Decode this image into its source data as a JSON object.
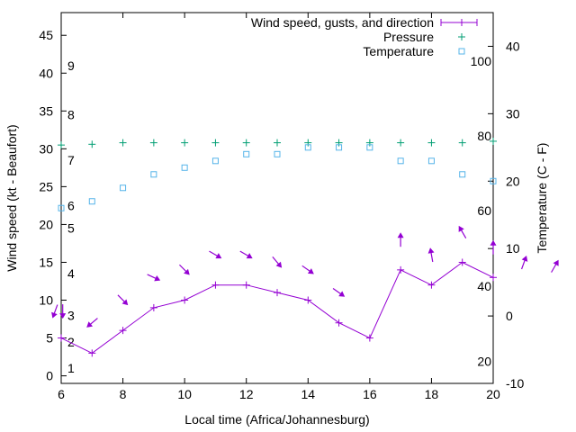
{
  "chart_data": {
    "type": "line",
    "xlabel": "Local time (Africa/Johannesburg)",
    "ylabel_left": "Wind speed (kt - Beaufort)",
    "ylabel_right": "Temperature (C - F)",
    "xlim": [
      6,
      20
    ],
    "ylim_left": [
      -1,
      48
    ],
    "ylim_right": [
      -10,
      45
    ],
    "x_ticks": [
      "6",
      "8",
      "10",
      "12",
      "14",
      "16",
      "18",
      "20"
    ],
    "y_left_ticks": [
      "0",
      "5",
      "10",
      "15",
      "20",
      "25",
      "30",
      "35",
      "40",
      "45"
    ],
    "y_right_ticks": [
      "-10",
      "0",
      "10",
      "20",
      "30",
      "40"
    ],
    "beaufort_labels": [
      {
        "text": "1",
        "wind_kt": 1
      },
      {
        "text": "2",
        "wind_kt": 4.5
      },
      {
        "text": "3",
        "wind_kt": 8
      },
      {
        "text": "4",
        "wind_kt": 13.5
      },
      {
        "text": "5",
        "wind_kt": 19.5
      },
      {
        "text": "6",
        "wind_kt": 22.5
      },
      {
        "text": "7",
        "wind_kt": 28.5
      },
      {
        "text": "8",
        "wind_kt": 34.5
      },
      {
        "text": "9",
        "wind_kt": 41
      }
    ],
    "fahrenheit_labels": [
      {
        "text": "20",
        "temp_c": -6.7
      },
      {
        "text": "40",
        "temp_c": 4.4
      },
      {
        "text": "60",
        "temp_c": 15.6
      },
      {
        "text": "80",
        "temp_c": 26.7
      },
      {
        "text": "100",
        "temp_c": 37.8
      }
    ],
    "legend_position": "top-right",
    "series": [
      {
        "name": "Wind speed, gusts, and direction",
        "color": "#9400d3",
        "axis": "left",
        "x": [
          6,
          7,
          8,
          9,
          10,
          11,
          12,
          13,
          14,
          15,
          16,
          17,
          18,
          19,
          20
        ],
        "values": [
          5,
          3,
          6,
          9,
          10,
          12,
          12,
          11,
          10,
          7,
          5,
          14,
          12,
          15,
          13
        ]
      },
      {
        "name": "Pressure",
        "color": "#009e73",
        "axis": "left",
        "x": [
          6,
          7,
          8,
          9,
          10,
          11,
          12,
          13,
          14,
          15,
          16,
          17,
          18,
          19,
          20
        ],
        "values": [
          30.5,
          30.6,
          30.8,
          30.8,
          30.8,
          30.8,
          30.8,
          30.8,
          30.8,
          30.8,
          30.8,
          30.8,
          30.8,
          30.8,
          31.0
        ]
      },
      {
        "name": "Temperature",
        "color": "#56b4e9",
        "axis": "right",
        "x": [
          6,
          7,
          8,
          9,
          10,
          11,
          12,
          13,
          14,
          15,
          16,
          17,
          18,
          19,
          20
        ],
        "values": [
          16,
          17,
          19,
          21,
          22,
          23,
          24,
          24,
          25,
          25,
          25,
          23,
          23,
          21,
          20
        ]
      }
    ],
    "wind_arrows": [
      {
        "x": 5.8,
        "wind_kt": 8.5,
        "angle": 110
      },
      {
        "x": 6.05,
        "wind_kt": 8.5,
        "angle": 90
      },
      {
        "x": 7.0,
        "wind_kt": 7.0,
        "angle": 140
      },
      {
        "x": 8.0,
        "wind_kt": 10.0,
        "angle": 45
      },
      {
        "x": 9.0,
        "wind_kt": 13.0,
        "angle": 25
      },
      {
        "x": 10.0,
        "wind_kt": 14.0,
        "angle": 45
      },
      {
        "x": 11.0,
        "wind_kt": 16.0,
        "angle": 30
      },
      {
        "x": 12.0,
        "wind_kt": 16.0,
        "angle": 30
      },
      {
        "x": 13.0,
        "wind_kt": 15.0,
        "angle": 50
      },
      {
        "x": 14.0,
        "wind_kt": 14.0,
        "angle": 35
      },
      {
        "x": 15.0,
        "wind_kt": 11.0,
        "angle": 35
      },
      {
        "x": 17.0,
        "wind_kt": 18.0,
        "angle": -90
      },
      {
        "x": 18.0,
        "wind_kt": 16.0,
        "angle": -100
      },
      {
        "x": 19.0,
        "wind_kt": 19.0,
        "angle": -120
      },
      {
        "x": 20.0,
        "wind_kt": 17.0,
        "angle": -90
      },
      {
        "x": 21.0,
        "wind_kt": 15.0,
        "angle": -70
      },
      {
        "x": 22.0,
        "wind_kt": 14.5,
        "angle": -60
      }
    ]
  }
}
